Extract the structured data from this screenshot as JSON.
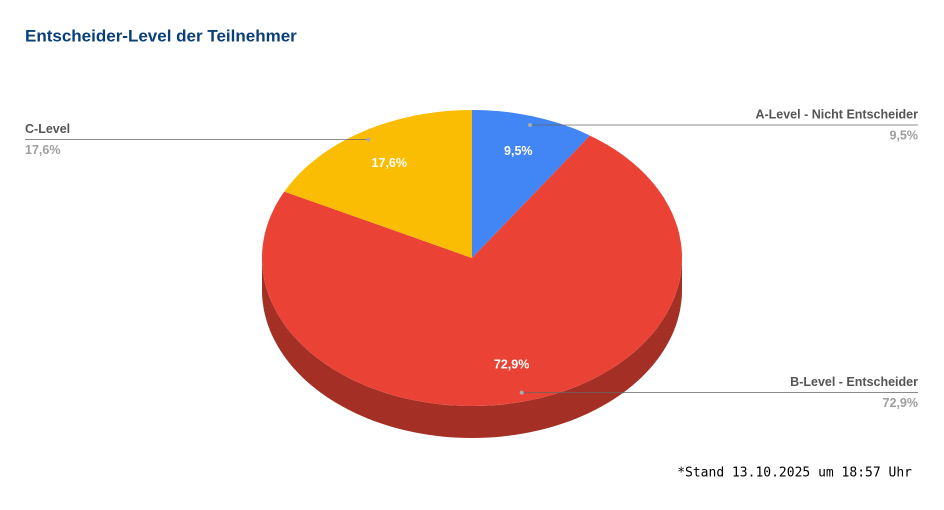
{
  "chart_data": {
    "type": "pie3d",
    "title": "Entscheider-Level der Teilnehmer",
    "categories": [
      "A-Level - Nicht Entscheider",
      "B-Level - Entscheider",
      "C-Level"
    ],
    "values": [
      9.5,
      72.9,
      17.6
    ],
    "value_labels": [
      "9,5%",
      "72,9%",
      "17,6%"
    ],
    "colors": [
      "#4285f4",
      "#ea4335",
      "#fbbc04"
    ],
    "footnote": "*Stand 13.10.2025 um 18:57 Uhr"
  }
}
